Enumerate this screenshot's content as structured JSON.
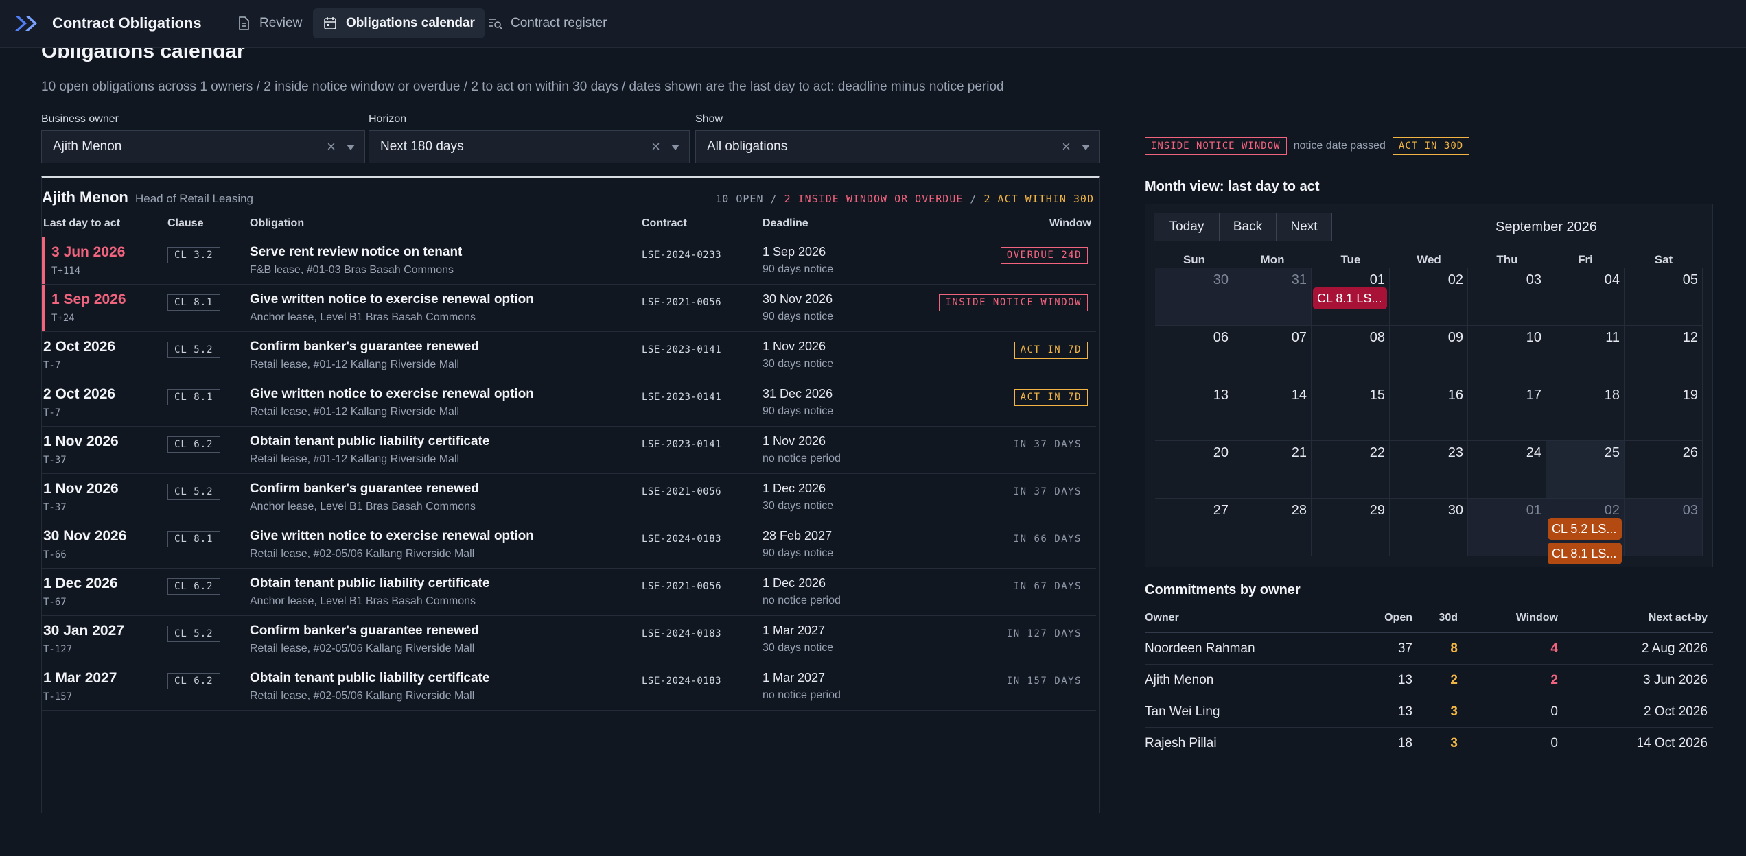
{
  "app": {
    "title": "Contract Obligations",
    "nav": [
      {
        "label": "Review",
        "icon": "document-icon"
      },
      {
        "label": "Obligations calendar",
        "icon": "calendar-icon",
        "active": true
      },
      {
        "label": "Contract register",
        "icon": "list-search-icon"
      }
    ]
  },
  "page": {
    "title": "Obligations calendar",
    "summary": "10 open obligations across 1 owners / 2 inside notice window or overdue / 2 to act on within 30 days / dates shown are the last day to act: deadline minus notice period"
  },
  "filters": [
    {
      "label": "Business owner",
      "value": "Ajith Menon"
    },
    {
      "label": "Horizon",
      "value": "Next 180 days"
    },
    {
      "label": "Show",
      "value": "All obligations"
    }
  ],
  "owner_group": {
    "name": "Ajith Menon",
    "role": "Head of Retail Leasing",
    "stat_open": "10 OPEN",
    "stat_sep": " / ",
    "stat_window": "2 INSIDE WINDOW OR OVERDUE",
    "stat_act": "2 ACT WITHIN 30D"
  },
  "columns": {
    "act_by": "Last day to act",
    "clause": "Clause",
    "obligation": "Obligation",
    "contract": "Contract",
    "deadline": "Deadline",
    "window": "Window"
  },
  "rows": [
    {
      "act_by": "3 Jun 2026",
      "tminus": "T+114",
      "clause": "CL 3.2",
      "title": "Serve rent review notice on tenant",
      "sub": "F&B lease, #01-03 Bras Basah Commons",
      "contract": "LSE-2024-0233",
      "deadline": "1 Sep 2026",
      "notice": "90 days notice",
      "window": "OVERDUE 24D",
      "status": "overdue"
    },
    {
      "act_by": "1 Sep 2026",
      "tminus": "T+24",
      "clause": "CL 8.1",
      "title": "Give written notice to exercise renewal option",
      "sub": "Anchor lease, Level B1 Bras Basah Commons",
      "contract": "LSE-2021-0056",
      "deadline": "30 Nov 2026",
      "notice": "90 days notice",
      "window": "INSIDE NOTICE WINDOW",
      "status": "inside"
    },
    {
      "act_by": "2 Oct 2026",
      "tminus": "T-7",
      "clause": "CL 5.2",
      "title": "Confirm banker's guarantee renewed",
      "sub": "Retail lease, #01-12 Kallang Riverside Mall",
      "contract": "LSE-2023-0141",
      "deadline": "1 Nov 2026",
      "notice": "30 days notice",
      "window": "ACT IN 7D",
      "status": "act"
    },
    {
      "act_by": "2 Oct 2026",
      "tminus": "T-7",
      "clause": "CL 8.1",
      "title": "Give written notice to exercise renewal option",
      "sub": "Retail lease, #01-12 Kallang Riverside Mall",
      "contract": "LSE-2023-0141",
      "deadline": "31 Dec 2026",
      "notice": "90 days notice",
      "window": "ACT IN 7D",
      "status": "act"
    },
    {
      "act_by": "1 Nov 2026",
      "tminus": "T-37",
      "clause": "CL 6.2",
      "title": "Obtain tenant public liability certificate",
      "sub": "Retail lease, #01-12 Kallang Riverside Mall",
      "contract": "LSE-2023-0141",
      "deadline": "1 Nov 2026",
      "notice": "no notice period",
      "window": "IN 37 DAYS",
      "status": "future"
    },
    {
      "act_by": "1 Nov 2026",
      "tminus": "T-37",
      "clause": "CL 5.2",
      "title": "Confirm banker's guarantee renewed",
      "sub": "Anchor lease, Level B1 Bras Basah Commons",
      "contract": "LSE-2021-0056",
      "deadline": "1 Dec 2026",
      "notice": "30 days notice",
      "window": "IN 37 DAYS",
      "status": "future"
    },
    {
      "act_by": "30 Nov 2026",
      "tminus": "T-66",
      "clause": "CL 8.1",
      "title": "Give written notice to exercise renewal option",
      "sub": "Retail lease, #02-05/06 Kallang Riverside Mall",
      "contract": "LSE-2024-0183",
      "deadline": "28 Feb 2027",
      "notice": "90 days notice",
      "window": "IN 66 DAYS",
      "status": "future"
    },
    {
      "act_by": "1 Dec 2026",
      "tminus": "T-67",
      "clause": "CL 6.2",
      "title": "Obtain tenant public liability certificate",
      "sub": "Anchor lease, Level B1 Bras Basah Commons",
      "contract": "LSE-2021-0056",
      "deadline": "1 Dec 2026",
      "notice": "no notice period",
      "window": "IN 67 DAYS",
      "status": "future"
    },
    {
      "act_by": "30 Jan 2027",
      "tminus": "T-127",
      "clause": "CL 5.2",
      "title": "Confirm banker's guarantee renewed",
      "sub": "Retail lease, #02-05/06 Kallang Riverside Mall",
      "contract": "LSE-2024-0183",
      "deadline": "1 Mar 2027",
      "notice": "30 days notice",
      "window": "IN 127 DAYS",
      "status": "future"
    },
    {
      "act_by": "1 Mar 2027",
      "tminus": "T-157",
      "clause": "CL 6.2",
      "title": "Obtain tenant public liability certificate",
      "sub": "Retail lease, #02-05/06 Kallang Riverside Mall",
      "contract": "LSE-2024-0183",
      "deadline": "1 Mar 2027",
      "notice": "no notice period",
      "window": "IN 157 DAYS",
      "status": "future"
    }
  ],
  "legend": {
    "inside": "INSIDE NOTICE WINDOW",
    "passed": "notice date passed",
    "act": "ACT IN 30D"
  },
  "calendar": {
    "heading": "Month view: last day to act",
    "buttons": [
      "Today",
      "Back",
      "Next"
    ],
    "month": "September 2026",
    "dows": [
      "Sun",
      "Mon",
      "Tue",
      "Wed",
      "Thu",
      "Fri",
      "Sat"
    ],
    "weeks": [
      [
        {
          "d": "30",
          "out": true
        },
        {
          "d": "31",
          "out": true
        },
        {
          "d": "01"
        },
        {
          "d": "02"
        },
        {
          "d": "03"
        },
        {
          "d": "04"
        },
        {
          "d": "05"
        }
      ],
      [
        {
          "d": "06"
        },
        {
          "d": "07"
        },
        {
          "d": "08"
        },
        {
          "d": "09"
        },
        {
          "d": "10"
        },
        {
          "d": "11"
        },
        {
          "d": "12"
        }
      ],
      [
        {
          "d": "13"
        },
        {
          "d": "14"
        },
        {
          "d": "15"
        },
        {
          "d": "16"
        },
        {
          "d": "17"
        },
        {
          "d": "18"
        },
        {
          "d": "19"
        }
      ],
      [
        {
          "d": "20"
        },
        {
          "d": "21"
        },
        {
          "d": "22"
        },
        {
          "d": "23"
        },
        {
          "d": "24"
        },
        {
          "d": "25",
          "today": true
        },
        {
          "d": "26"
        }
      ],
      [
        {
          "d": "27"
        },
        {
          "d": "28"
        },
        {
          "d": "29"
        },
        {
          "d": "30"
        },
        {
          "d": "01",
          "out": true
        },
        {
          "d": "02",
          "out": true
        },
        {
          "d": "03",
          "out": true
        }
      ]
    ],
    "events": [
      {
        "week": 0,
        "day": 2,
        "label": "CL 8.1 LS...",
        "color": "red"
      },
      {
        "week": 4,
        "day": 5,
        "label": "CL 5.2 LS...",
        "color": "orange"
      },
      {
        "week": 4,
        "day": 5,
        "label": "CL 8.1 LS...",
        "color": "orange"
      }
    ]
  },
  "owners": {
    "heading": "Commitments by owner",
    "columns": [
      "Owner",
      "Open",
      "30d",
      "Window",
      "Next act-by"
    ],
    "rows": [
      {
        "name": "Noordeen Rahman",
        "open": "37",
        "d30": "8",
        "window": "4",
        "next": "2 Aug 2026"
      },
      {
        "name": "Ajith Menon",
        "open": "13",
        "d30": "2",
        "window": "2",
        "next": "3 Jun 2026"
      },
      {
        "name": "Tan Wei Ling",
        "open": "13",
        "d30": "3",
        "window": "0",
        "next": "2 Oct 2026"
      },
      {
        "name": "Rajesh Pillai",
        "open": "18",
        "d30": "3",
        "window": "0",
        "next": "14 Oct 2026"
      }
    ]
  },
  "colors": {
    "background": "#111721",
    "alert_red": "#f2647e",
    "amber": "#f2b544",
    "event_red": "#a81237",
    "event_orange": "#b34a12"
  }
}
